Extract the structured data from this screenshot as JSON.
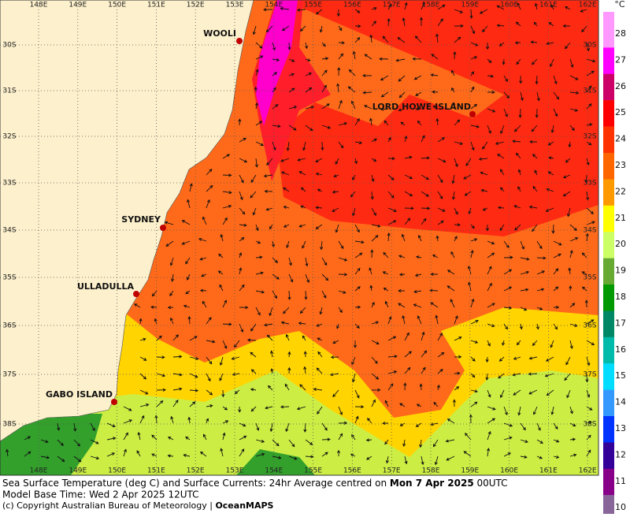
{
  "map": {
    "longitudes": [
      "148E",
      "149E",
      "150E",
      "151E",
      "152E",
      "153E",
      "154E",
      "155E",
      "156E",
      "157E",
      "158E",
      "159E",
      "160E",
      "161E",
      "162E"
    ],
    "latitudes": [
      "30S",
      "31S",
      "32S",
      "33S",
      "34S",
      "35S",
      "36S",
      "37S",
      "38S"
    ],
    "places": [
      "WOOLI",
      "SYDNEY",
      "ULLADULLA",
      "GABO ISLAND",
      "LORD HOWE ISLAND"
    ]
  },
  "colorbar": {
    "unit": "°C",
    "levels": [
      {
        "value": 28,
        "color": "#ff99ff"
      },
      {
        "value": 27,
        "color": "#ff00ff"
      },
      {
        "value": 26,
        "color": "#cc0066"
      },
      {
        "value": 25,
        "color": "#ff0000"
      },
      {
        "value": 24,
        "color": "#ff3300"
      },
      {
        "value": 23,
        "color": "#ff6600"
      },
      {
        "value": 22,
        "color": "#ff9900"
      },
      {
        "value": 21,
        "color": "#ffff00"
      },
      {
        "value": 20,
        "color": "#ccff66"
      },
      {
        "value": 19,
        "color": "#66aa33"
      },
      {
        "value": 18,
        "color": "#009900"
      },
      {
        "value": 17,
        "color": "#008866"
      },
      {
        "value": 16,
        "color": "#00bbaa"
      },
      {
        "value": 15,
        "color": "#00ddff"
      },
      {
        "value": 14,
        "color": "#3399ff"
      },
      {
        "value": 13,
        "color": "#0033ff"
      },
      {
        "value": 12,
        "color": "#330099"
      },
      {
        "value": 11,
        "color": "#880088"
      },
      {
        "value": 10,
        "color": "#886699"
      }
    ]
  },
  "caption": {
    "line1": [
      "Sea Surface Temperature (deg C) and Surface Currents: 24hr Average centred on ",
      "Mon 7 Apr 2025",
      " 00UTC"
    ],
    "line2": "Model Base Time: Wed 2 Apr 2025 12UTC",
    "line3": [
      "(c) Copyright Australian Bureau of Meteorology | ",
      "OceanMAPS"
    ]
  }
}
